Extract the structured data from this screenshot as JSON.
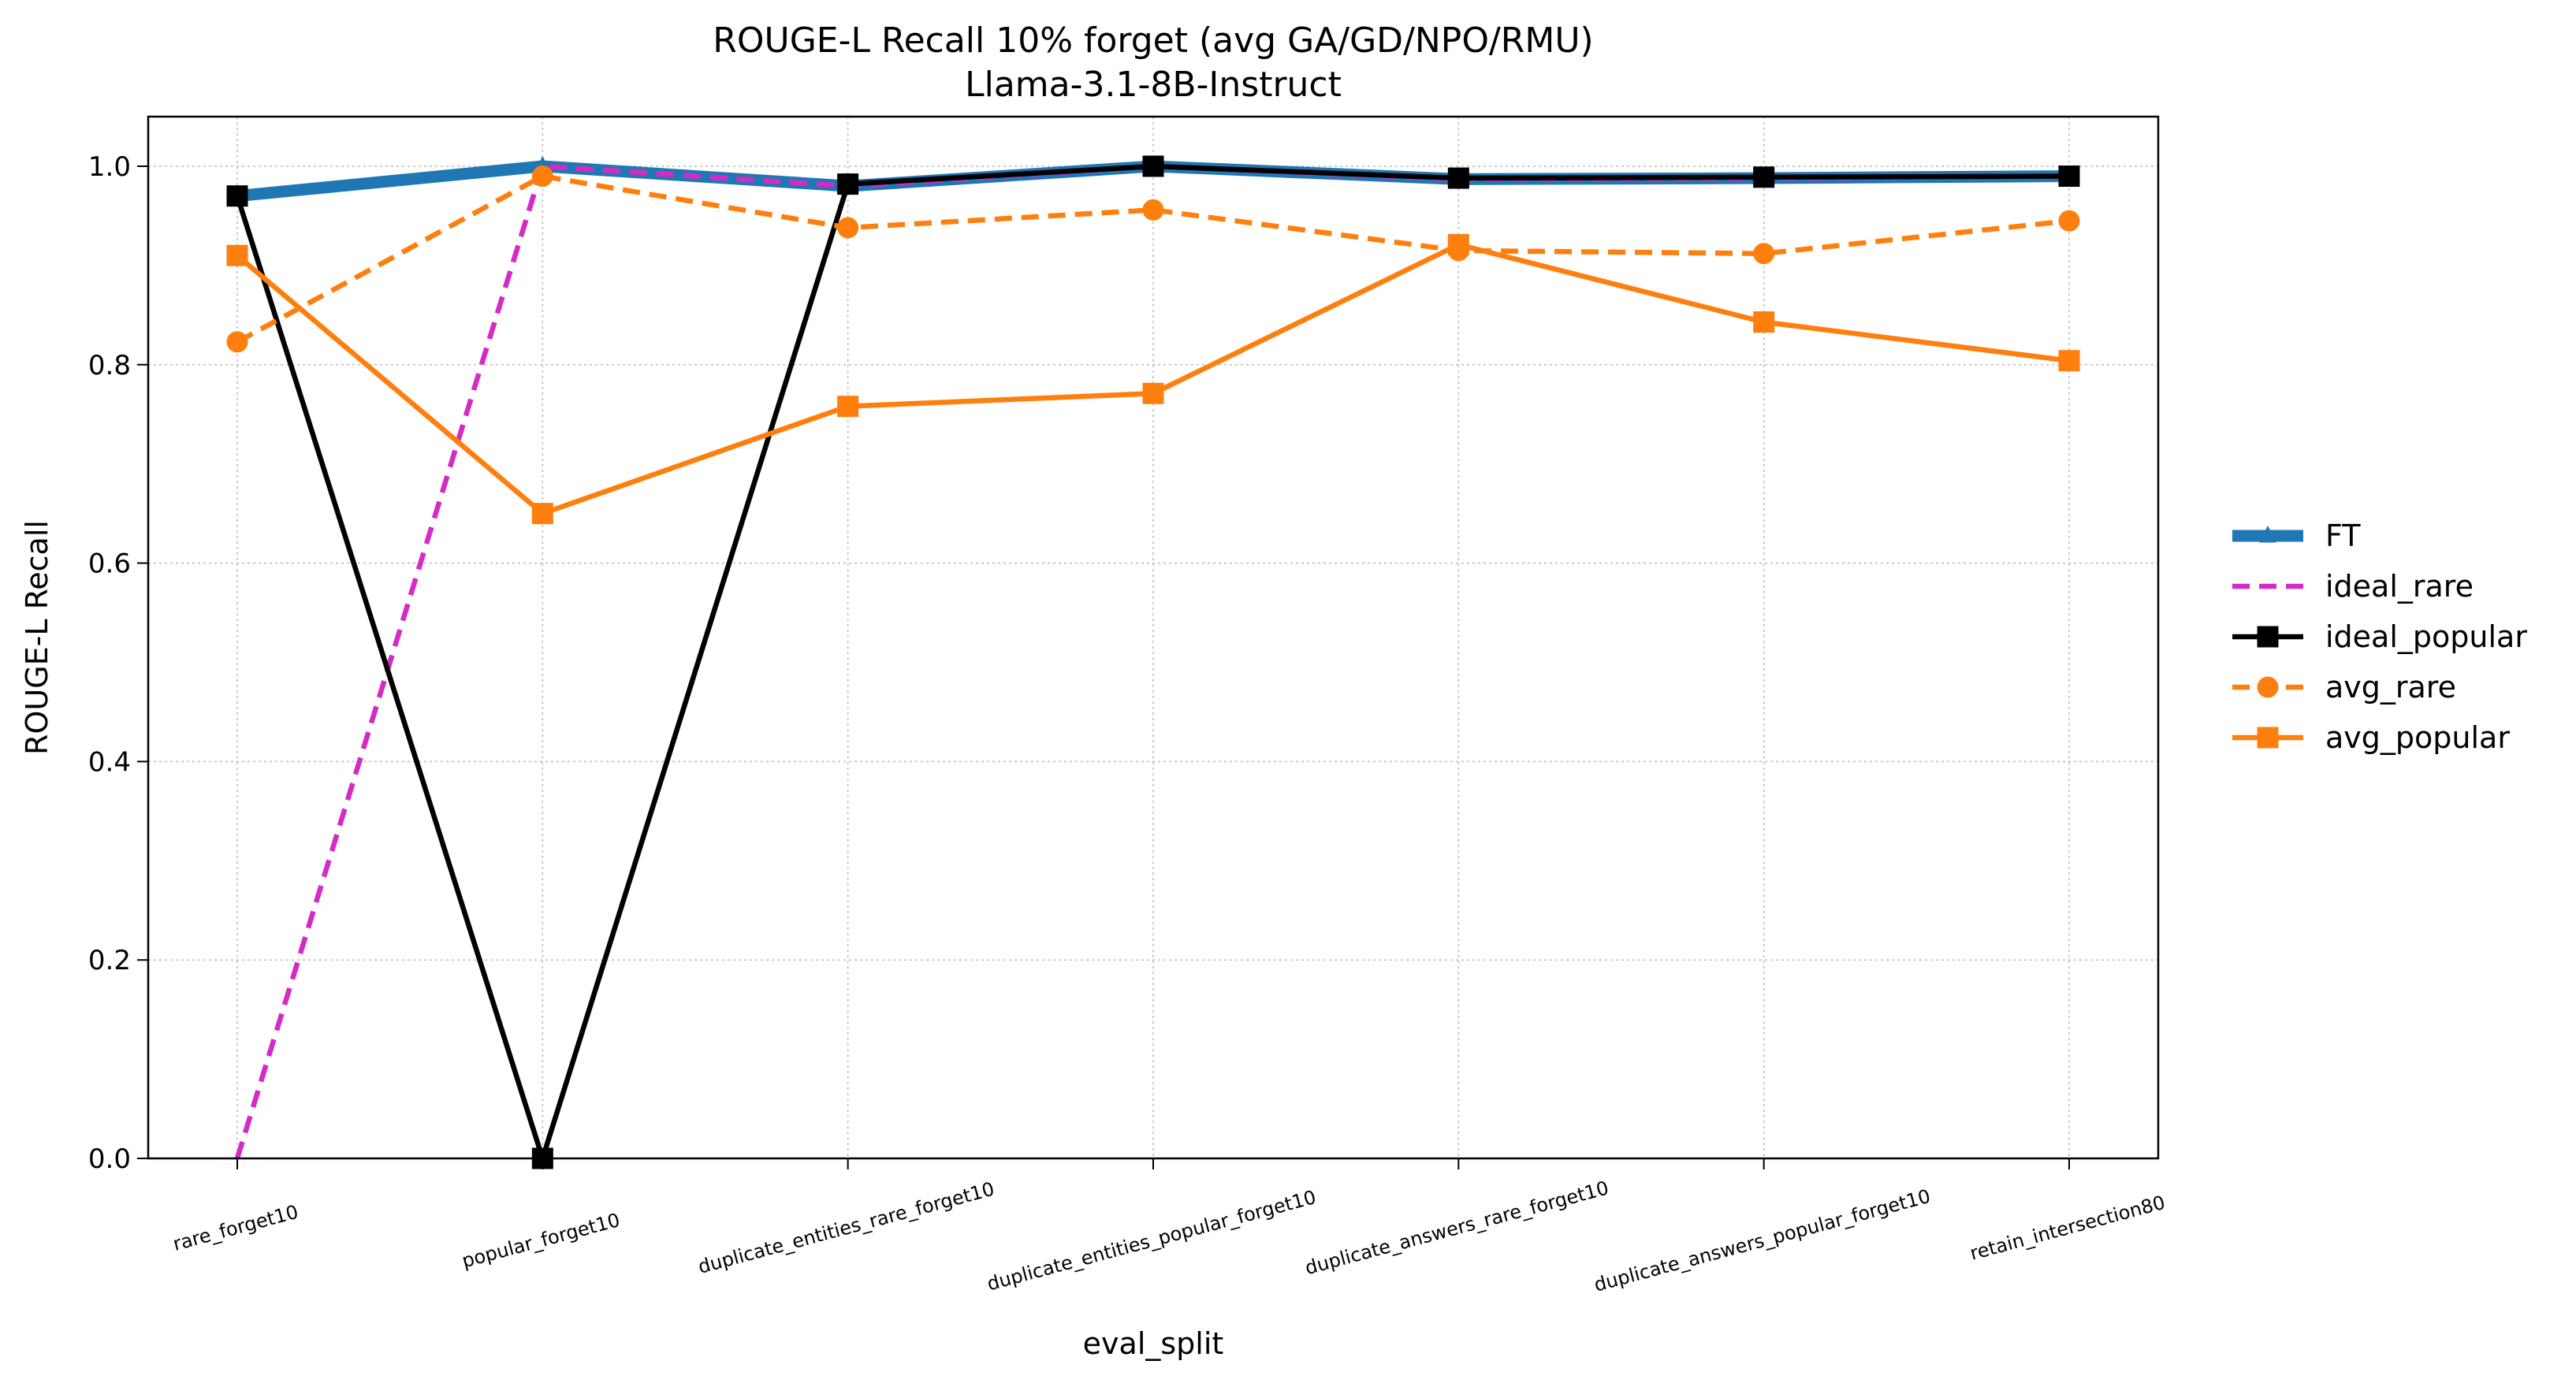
{
  "chart_data": {
    "type": "line",
    "title": "ROUGE-L Recall 10% forget (avg GA/GD/NPO/RMU)",
    "subtitle": "Llama-3.1-8B-Instruct",
    "xlabel": "eval_split",
    "ylabel": "ROUGE-L Recall",
    "ylim": [
      0.0,
      1.05
    ],
    "yticks": [
      "0.0",
      "0.2",
      "0.4",
      "0.6",
      "0.8",
      "1.0"
    ],
    "ytick_values": [
      0.0,
      0.2,
      0.4,
      0.6,
      0.8,
      1.0
    ],
    "grid": true,
    "legend_position": "right",
    "categories": [
      "rare_forget10",
      "popular_forget10",
      "duplicate_entities_rare_forget10",
      "duplicate_entities_popular_forget10",
      "duplicate_answers_rare_forget10",
      "duplicate_answers_popular_forget10",
      "retain_intersection80"
    ],
    "series": [
      {
        "name": "FT",
        "color": "#1f77b4",
        "linestyle": "solid",
        "marker": "triangle",
        "width": "thick",
        "values": [
          0.97,
          1.0,
          0.98,
          1.0,
          0.987,
          0.988,
          0.99
        ]
      },
      {
        "name": "ideal_rare",
        "color": "#d62ac4",
        "linestyle": "dashed",
        "marker": "none",
        "width": "normal",
        "values": [
          0.0,
          1.0,
          0.98,
          1.0,
          0.987,
          0.988,
          0.99
        ]
      },
      {
        "name": "ideal_popular",
        "color": "#000000",
        "linestyle": "solid",
        "marker": "square",
        "width": "normal",
        "values": [
          0.97,
          0.0,
          0.982,
          1.0,
          0.988,
          0.989,
          0.99
        ]
      },
      {
        "name": "avg_rare",
        "color": "#ff7f0e",
        "linestyle": "dashed",
        "marker": "circle",
        "width": "normal",
        "values": [
          0.823,
          0.99,
          0.938,
          0.956,
          0.915,
          0.912,
          0.945
        ]
      },
      {
        "name": "avg_popular",
        "color": "#ff7f0e",
        "linestyle": "solid",
        "marker": "square",
        "width": "normal",
        "values": [
          0.91,
          0.65,
          0.758,
          0.771,
          0.921,
          0.843,
          0.804
        ]
      }
    ]
  }
}
